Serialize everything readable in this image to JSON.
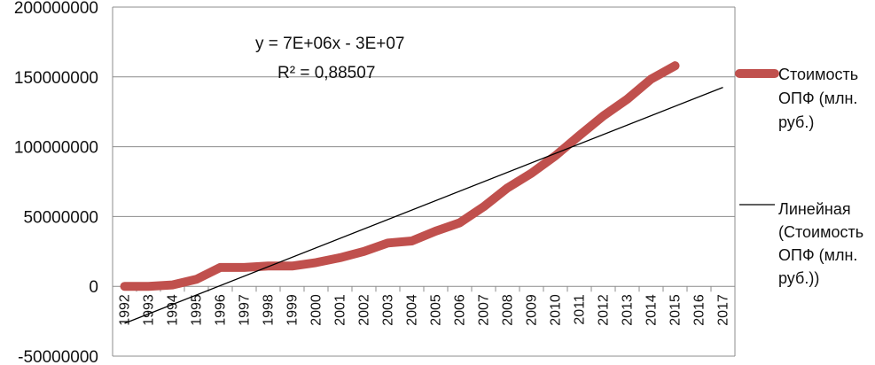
{
  "chart_data": {
    "type": "line",
    "x": [
      "1992",
      "1993",
      "1994",
      "1995",
      "1996",
      "1997",
      "1998",
      "1999",
      "2000",
      "2001",
      "2002",
      "2003",
      "2004",
      "2005",
      "2006",
      "2007",
      "2008",
      "2009",
      "2010",
      "2011",
      "2012",
      "2013",
      "2014",
      "2015",
      "2016",
      "2017"
    ],
    "series": [
      {
        "name": "Стоимость ОПФ (млн. руб.)",
        "color": "#c0504d",
        "values": [
          0,
          0,
          1000000,
          5000000,
          13500000,
          13500000,
          14500000,
          14500000,
          17000000,
          20500000,
          25000000,
          31000000,
          32500000,
          39500000,
          45500000,
          57000000,
          70500000,
          81000000,
          93500000,
          108000000,
          122000000,
          134000000,
          148500000,
          158000000,
          null,
          null
        ]
      },
      {
        "name": "Линейная (Стоимость ОПФ (млн. руб.))",
        "color": "#000000",
        "trendline": true,
        "values": [
          -26500000,
          null,
          null,
          null,
          null,
          null,
          null,
          null,
          null,
          null,
          null,
          null,
          null,
          null,
          null,
          null,
          null,
          null,
          null,
          null,
          null,
          null,
          null,
          null,
          null,
          142500000
        ]
      }
    ],
    "legend_lines": [
      [
        "Стоимость",
        "ОПФ (млн.",
        "руб.)"
      ],
      [
        "Линейная",
        "(Стоимость",
        "ОПФ (млн.",
        "руб.))"
      ]
    ],
    "equation": "y = 7E+06x - 3E+07",
    "r_squared": "R² = 0,88507",
    "yticks": [
      "200000000",
      "150000000",
      "100000000",
      "50000000",
      "0",
      "-50000000"
    ],
    "ytick_values": [
      200000000,
      150000000,
      100000000,
      50000000,
      0,
      -50000000
    ],
    "ylim": [
      -50000000,
      200000000
    ],
    "grid": true,
    "legend_position": "right"
  }
}
